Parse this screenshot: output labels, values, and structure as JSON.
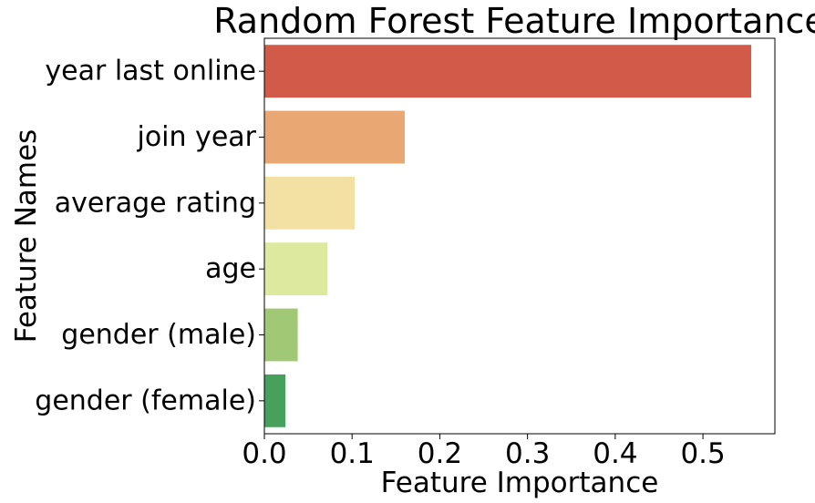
{
  "chart_data": {
    "type": "bar",
    "orientation": "horizontal",
    "title": "Random Forest Feature Importance",
    "xlabel": "Feature Importance",
    "ylabel": "Feature Names",
    "categories": [
      "year last online",
      "join year",
      "average rating",
      "age",
      "gender (male)",
      "gender (female)"
    ],
    "values": [
      0.555,
      0.16,
      0.103,
      0.072,
      0.038,
      0.024
    ],
    "colors": [
      "#d15b48",
      "#e9a774",
      "#f3e0a3",
      "#dce99f",
      "#a0c875",
      "#47a05c"
    ],
    "xlim": [
      0,
      0.582
    ],
    "xticks": [
      0.0,
      0.1,
      0.2,
      0.3,
      0.4,
      0.5
    ],
    "xtick_labels": [
      "0.0",
      "0.1",
      "0.2",
      "0.3",
      "0.4",
      "0.5"
    ],
    "grid": false,
    "legend": "none"
  }
}
